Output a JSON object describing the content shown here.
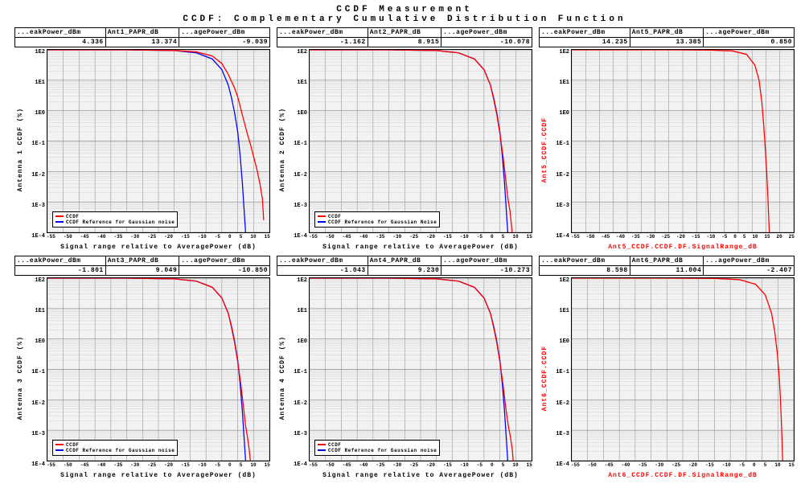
{
  "title1": "CCDF Measurement",
  "title2": "CCDF: Complementary Cumulative Distribution Function",
  "global": {
    "bg": "#ffffff",
    "plot_bg": "#f2f2f2",
    "grid_major": "#888888",
    "grid_minor": "#cccccc",
    "ccdf_color": "#ff0000",
    "ref_color": "#0000ff",
    "tick_fontsize": 7,
    "label_fontsize": 8,
    "line_width": 1.2,
    "ytick_labels": [
      "1E2",
      "1E1",
      "1E0",
      "1E-1",
      "1E-2",
      "1E-3",
      "1E-4"
    ],
    "ylog_min": -4,
    "ylog_max": 2
  },
  "panels": [
    {
      "headers": [
        "...eakPower_dBm",
        "Ant1_PAPR_dB",
        "...agePower_dBm"
      ],
      "values": [
        "4.336",
        "13.374",
        "-9.039"
      ],
      "ylab": "Antenna 1 CCDF (%)",
      "ylab_color": "#000000",
      "xlab": "Signal range relative to AveragePower (dB)",
      "xlab_color": "#000000",
      "xmin": -55,
      "xmax": 15,
      "xticks": [
        "-55",
        "-50",
        "-45",
        "-40",
        "-35",
        "-30",
        "-25",
        "-20",
        "-15",
        "-10",
        "-5",
        "0",
        "5",
        "10",
        "15"
      ],
      "show_ref": true,
      "ccdf": [
        [
          -55,
          2
        ],
        [
          -30,
          2
        ],
        [
          -15,
          1.98
        ],
        [
          -8,
          1.93
        ],
        [
          -3,
          1.8
        ],
        [
          0,
          1.55
        ],
        [
          2,
          1.2
        ],
        [
          4,
          0.75
        ],
        [
          5,
          0.45
        ],
        [
          6,
          0.05
        ],
        [
          7,
          -0.35
        ],
        [
          8,
          -0.75
        ],
        [
          9,
          -1.1
        ],
        [
          10,
          -1.5
        ],
        [
          11,
          -1.9
        ],
        [
          12,
          -2.4
        ],
        [
          12.8,
          -2.9
        ],
        [
          13.2,
          -3.6
        ]
      ],
      "ref": [
        [
          -55,
          2
        ],
        [
          -30,
          2
        ],
        [
          -15,
          1.98
        ],
        [
          -8,
          1.9
        ],
        [
          -3,
          1.7
        ],
        [
          0,
          1.35
        ],
        [
          2,
          0.85
        ],
        [
          3,
          0.45
        ],
        [
          4,
          -0.05
        ],
        [
          5,
          -0.7
        ],
        [
          5.8,
          -1.5
        ],
        [
          6.5,
          -2.4
        ],
        [
          7.1,
          -3.4
        ],
        [
          7.5,
          -4
        ]
      ],
      "legend": [
        "CCDF",
        "CCDF Reference for Gaussian noise"
      ]
    },
    {
      "headers": [
        "...eakPower_dBm",
        "Ant2_PAPR_dB",
        "...agePower_dBm"
      ],
      "values": [
        "-1.162",
        "8.915",
        "-10.078"
      ],
      "ylab": "Antenna 2 CCDF (%)",
      "ylab_color": "#000000",
      "xlab": "Signal range relative to AveragePower (dB)",
      "xlab_color": "#000000",
      "xmin": -55,
      "xmax": 15,
      "xticks": [
        "-55",
        "-50",
        "-45",
        "-40",
        "-35",
        "-30",
        "-25",
        "-20",
        "-15",
        "-10",
        "-5",
        "0",
        "5",
        "10",
        "15"
      ],
      "show_ref": true,
      "ccdf": [
        [
          -55,
          2
        ],
        [
          -30,
          2
        ],
        [
          -15,
          1.98
        ],
        [
          -8,
          1.9
        ],
        [
          -3,
          1.7
        ],
        [
          0,
          1.35
        ],
        [
          2,
          0.85
        ],
        [
          3,
          0.4
        ],
        [
          4,
          -0.1
        ],
        [
          5,
          -0.75
        ],
        [
          6,
          -1.5
        ],
        [
          6.8,
          -2.2
        ],
        [
          7.5,
          -2.85
        ],
        [
          8.2,
          -3.3
        ],
        [
          8.6,
          -3.7
        ],
        [
          8.9,
          -4
        ]
      ],
      "ref": [
        [
          -55,
          2
        ],
        [
          -30,
          2
        ],
        [
          -15,
          1.98
        ],
        [
          -8,
          1.9
        ],
        [
          -3,
          1.7
        ],
        [
          0,
          1.35
        ],
        [
          2,
          0.85
        ],
        [
          3,
          0.45
        ],
        [
          4,
          -0.05
        ],
        [
          5,
          -0.7
        ],
        [
          5.8,
          -1.5
        ],
        [
          6.5,
          -2.4
        ],
        [
          7.1,
          -3.4
        ],
        [
          7.5,
          -4
        ]
      ],
      "legend": [
        "CCDF",
        "CCDF Reference for Gaussian Noise"
      ]
    },
    {
      "headers": [
        "...eakPower_dBm",
        "Ant5_PAPR_dB",
        "...agePower_dBm"
      ],
      "values": [
        "14.235",
        "13.385",
        "0.850"
      ],
      "ylab": "Ant5_CCDF.CCDF",
      "ylab_color": "#ff0000",
      "xlab": "Ant5_CCDF.CCDF.DF.SignalRange_dB",
      "xlab_color": "#ff0000",
      "xmin": -55,
      "xmax": 25,
      "xticks": [
        "-55",
        "-50",
        "-45",
        "-40",
        "-35",
        "-30",
        "-25",
        "-20",
        "-15",
        "-10",
        "-5",
        "0",
        "5",
        "10",
        "15",
        "20",
        "25"
      ],
      "show_ref": false,
      "ccdf": [
        [
          -55,
          2
        ],
        [
          -20,
          2
        ],
        [
          -5,
          1.99
        ],
        [
          3,
          1.96
        ],
        [
          8,
          1.85
        ],
        [
          11,
          1.5
        ],
        [
          12.5,
          1.0
        ],
        [
          13.5,
          0.3
        ],
        [
          14.2,
          -0.5
        ],
        [
          14.8,
          -1.3
        ],
        [
          15.3,
          -2.1
        ],
        [
          15.7,
          -2.9
        ],
        [
          16.0,
          -3.6
        ],
        [
          16.2,
          -4
        ]
      ],
      "legend": null
    },
    {
      "headers": [
        "...eakPower_dBm",
        "Ant3_PAPR_dB",
        "...agePower_dBm"
      ],
      "values": [
        "-1.801",
        "9.049",
        "-10.850"
      ],
      "ylab": "Antenna 3 CCDF (%)",
      "ylab_color": "#000000",
      "xlab": "Signal range relative to AveragePower (dB)",
      "xlab_color": "#000000",
      "xmin": -55,
      "xmax": 15,
      "xticks": [
        "-55",
        "-50",
        "-45",
        "-40",
        "-35",
        "-30",
        "-25",
        "-20",
        "-15",
        "-10",
        "-5",
        "0",
        "5",
        "10",
        "15"
      ],
      "show_ref": true,
      "ccdf": [
        [
          -55,
          2
        ],
        [
          -30,
          2
        ],
        [
          -15,
          1.98
        ],
        [
          -8,
          1.9
        ],
        [
          -3,
          1.7
        ],
        [
          0,
          1.35
        ],
        [
          2,
          0.85
        ],
        [
          3,
          0.4
        ],
        [
          4,
          -0.1
        ],
        [
          5,
          -0.75
        ],
        [
          6,
          -1.5
        ],
        [
          6.8,
          -2.2
        ],
        [
          7.5,
          -2.85
        ],
        [
          8.2,
          -3.3
        ],
        [
          8.7,
          -3.7
        ],
        [
          9.0,
          -4
        ]
      ],
      "ref": [
        [
          -55,
          2
        ],
        [
          -30,
          2
        ],
        [
          -15,
          1.98
        ],
        [
          -8,
          1.9
        ],
        [
          -3,
          1.7
        ],
        [
          0,
          1.35
        ],
        [
          2,
          0.85
        ],
        [
          3,
          0.45
        ],
        [
          4,
          -0.05
        ],
        [
          5,
          -0.7
        ],
        [
          5.8,
          -1.5
        ],
        [
          6.5,
          -2.4
        ],
        [
          7.1,
          -3.4
        ],
        [
          7.5,
          -4
        ]
      ],
      "legend": [
        "CCDF",
        "CCDF Reference for Gaussian noise"
      ]
    },
    {
      "headers": [
        "...eakPower_dBm",
        "Ant4_PAPR_dB",
        "...agePower_dBm"
      ],
      "values": [
        "-1.043",
        "9.230",
        "-10.273"
      ],
      "ylab": "Antenna 4 CCDF (%)",
      "ylab_color": "#000000",
      "xlab": "Signal range relative to AveragePower (dB)",
      "xlab_color": "#000000",
      "xmin": -55,
      "xmax": 15,
      "xticks": [
        "-55",
        "-50",
        "-45",
        "-40",
        "-35",
        "-30",
        "-25",
        "-20",
        "-15",
        "-10",
        "-5",
        "0",
        "5",
        "10",
        "15"
      ],
      "show_ref": true,
      "ccdf": [
        [
          -55,
          2
        ],
        [
          -30,
          2
        ],
        [
          -15,
          1.98
        ],
        [
          -8,
          1.9
        ],
        [
          -3,
          1.7
        ],
        [
          0,
          1.35
        ],
        [
          2,
          0.85
        ],
        [
          3,
          0.4
        ],
        [
          4,
          -0.1
        ],
        [
          5,
          -0.75
        ],
        [
          6,
          -1.5
        ],
        [
          6.8,
          -2.2
        ],
        [
          7.6,
          -2.8
        ],
        [
          8.3,
          -3.2
        ],
        [
          8.9,
          -3.6
        ],
        [
          9.2,
          -4
        ]
      ],
      "ref": [
        [
          -55,
          2
        ],
        [
          -30,
          2
        ],
        [
          -15,
          1.98
        ],
        [
          -8,
          1.9
        ],
        [
          -3,
          1.7
        ],
        [
          0,
          1.35
        ],
        [
          2,
          0.85
        ],
        [
          3,
          0.45
        ],
        [
          4,
          -0.05
        ],
        [
          5,
          -0.7
        ],
        [
          5.8,
          -1.5
        ],
        [
          6.5,
          -2.4
        ],
        [
          7.1,
          -3.4
        ],
        [
          7.5,
          -4
        ]
      ],
      "legend": [
        "CCDF",
        "CCDF Reference for Gaussian noise"
      ]
    },
    {
      "headers": [
        "...eakPower_dBm",
        "Ant6_PAPR_dB",
        "...agePower_dBm"
      ],
      "values": [
        "8.598",
        "11.004",
        "-2.407"
      ],
      "ylab": "Ant6_CCDF.CCDF",
      "ylab_color": "#ff0000",
      "xlab": "Ant6_CCDF.CCDF.DF.SignalRange_dB",
      "xlab_color": "#ff0000",
      "xmin": -55,
      "xmax": 15,
      "xticks": [
        "-55",
        "-50",
        "-45",
        "-40",
        "-35",
        "-30",
        "-25",
        "-20",
        "-15",
        "-10",
        "-5",
        "0",
        "5",
        "10",
        "15"
      ],
      "show_ref": false,
      "ccdf": [
        [
          -55,
          2
        ],
        [
          -25,
          2
        ],
        [
          -10,
          1.99
        ],
        [
          -2,
          1.95
        ],
        [
          3,
          1.8
        ],
        [
          6,
          1.45
        ],
        [
          8,
          0.85
        ],
        [
          9,
          0.25
        ],
        [
          9.8,
          -0.45
        ],
        [
          10.4,
          -1.2
        ],
        [
          10.8,
          -1.95
        ],
        [
          11.1,
          -2.7
        ],
        [
          11.35,
          -3.4
        ],
        [
          11.5,
          -4
        ]
      ],
      "legend": null
    }
  ]
}
